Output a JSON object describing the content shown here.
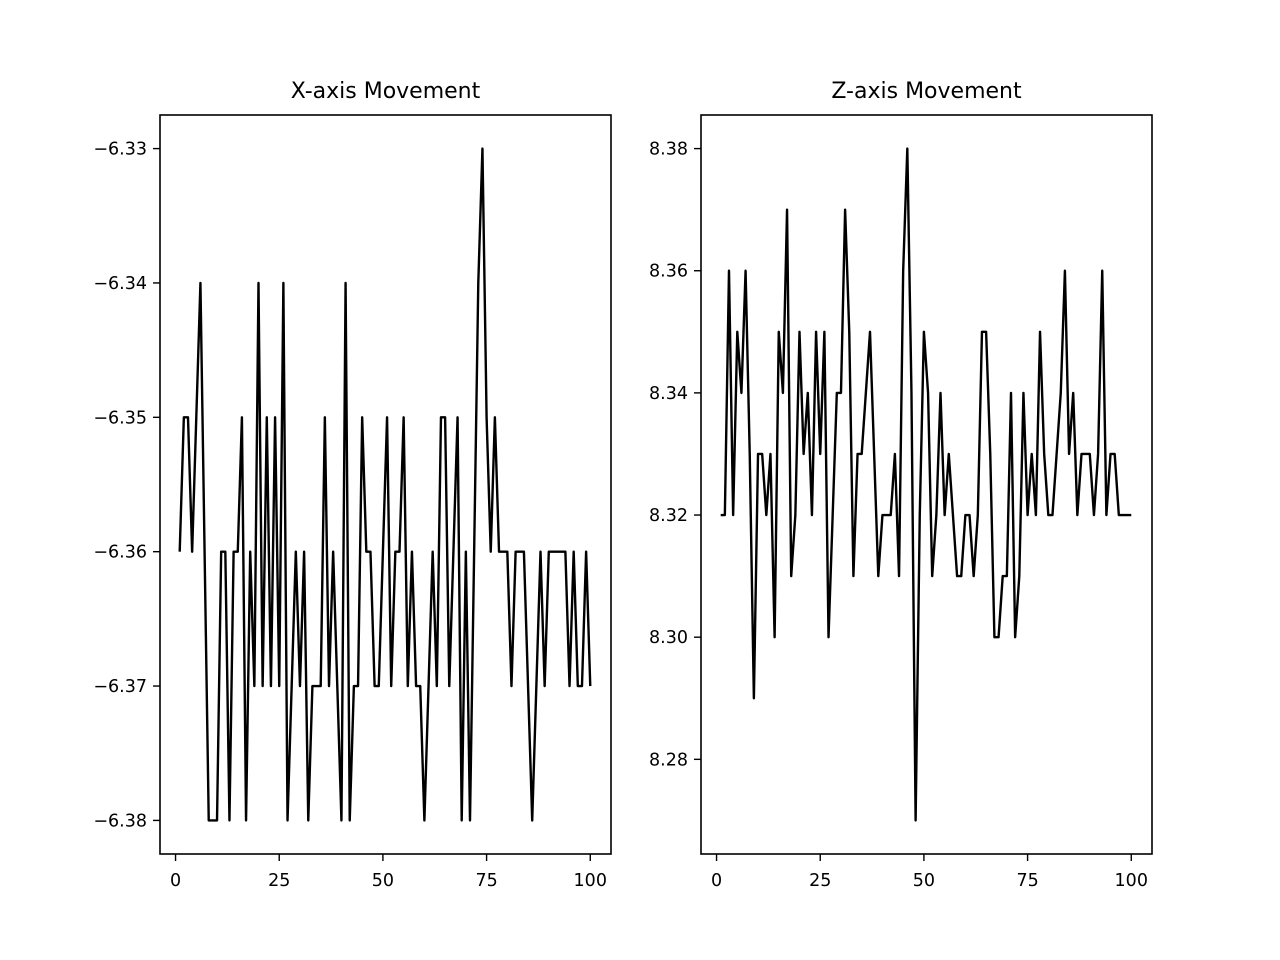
{
  "chart_data": [
    {
      "type": "line",
      "title": "X-axis Movement",
      "xlabel": "",
      "ylabel": "",
      "xlim": [
        -3.75,
        105.0
      ],
      "ylim": [
        -6.3825,
        -6.3275
      ],
      "xticks": [
        0,
        25,
        50,
        75,
        100
      ],
      "xtick_labels": [
        "0",
        "25",
        "50",
        "75",
        "100"
      ],
      "yticks": [
        -6.38,
        -6.37,
        -6.36,
        -6.35,
        -6.34,
        -6.33
      ],
      "ytick_labels": [
        "−6.38",
        "−6.37",
        "−6.36",
        "−6.35",
        "−6.34",
        "−6.33"
      ],
      "grid": false,
      "color": "#000000",
      "series": [
        {
          "x": [
            1,
            2,
            3,
            4,
            5,
            6,
            7,
            8,
            9,
            10,
            11,
            12,
            13,
            14,
            15,
            16,
            17,
            18,
            19,
            20,
            21,
            22,
            23,
            24,
            25,
            26,
            27,
            28,
            29,
            30,
            31,
            32,
            33,
            34,
            35,
            36,
            37,
            38,
            39,
            40,
            41,
            42,
            43,
            44,
            45,
            46,
            47,
            48,
            49,
            50,
            51,
            52,
            53,
            54,
            55,
            56,
            57,
            58,
            59,
            60,
            61,
            62,
            63,
            64,
            65,
            66,
            67,
            68,
            69,
            70,
            71,
            72,
            73,
            74,
            75,
            76,
            77,
            78,
            79,
            80,
            81,
            82,
            83,
            84,
            85,
            86,
            87,
            88,
            89,
            90,
            91,
            92,
            93,
            94,
            95,
            96,
            97,
            98,
            99,
            100
          ],
          "y": [
            -6.36,
            -6.35,
            -6.35,
            -6.36,
            -6.35,
            -6.34,
            -6.36,
            -6.38,
            -6.38,
            -6.38,
            -6.36,
            -6.36,
            -6.38,
            -6.36,
            -6.36,
            -6.35,
            -6.38,
            -6.36,
            -6.37,
            -6.34,
            -6.37,
            -6.35,
            -6.37,
            -6.35,
            -6.37,
            -6.34,
            -6.38,
            -6.37,
            -6.36,
            -6.37,
            -6.36,
            -6.38,
            -6.37,
            -6.37,
            -6.37,
            -6.35,
            -6.37,
            -6.36,
            -6.37,
            -6.38,
            -6.34,
            -6.38,
            -6.37,
            -6.37,
            -6.35,
            -6.36,
            -6.36,
            -6.37,
            -6.37,
            -6.36,
            -6.35,
            -6.37,
            -6.36,
            -6.36,
            -6.35,
            -6.37,
            -6.36,
            -6.37,
            -6.37,
            -6.38,
            -6.37,
            -6.36,
            -6.37,
            -6.35,
            -6.35,
            -6.37,
            -6.36,
            -6.35,
            -6.38,
            -6.36,
            -6.38,
            -6.36,
            -6.34,
            -6.33,
            -6.35,
            -6.36,
            -6.35,
            -6.36,
            -6.36,
            -6.36,
            -6.37,
            -6.36,
            -6.36,
            -6.36,
            -6.37,
            -6.38,
            -6.37,
            -6.36,
            -6.37,
            -6.36,
            -6.36,
            -6.36,
            -6.36,
            -6.36,
            -6.37,
            -6.36,
            -6.37,
            -6.37,
            -6.36,
            -6.37
          ]
        }
      ]
    },
    {
      "type": "line",
      "title": "Z-axis Movement",
      "xlabel": "",
      "ylabel": "",
      "xlim": [
        -3.75,
        105.0
      ],
      "ylim": [
        8.2645,
        8.3855
      ],
      "xticks": [
        0,
        25,
        50,
        75,
        100
      ],
      "xtick_labels": [
        "0",
        "25",
        "50",
        "75",
        "100"
      ],
      "yticks": [
        8.28,
        8.3,
        8.32,
        8.34,
        8.36,
        8.38
      ],
      "ytick_labels": [
        "8.28",
        "8.30",
        "8.32",
        "8.34",
        "8.36",
        "8.38"
      ],
      "grid": false,
      "color": "#000000",
      "series": [
        {
          "x": [
            1,
            2,
            3,
            4,
            5,
            6,
            7,
            8,
            9,
            10,
            11,
            12,
            13,
            14,
            15,
            16,
            17,
            18,
            19,
            20,
            21,
            22,
            23,
            24,
            25,
            26,
            27,
            28,
            29,
            30,
            31,
            32,
            33,
            34,
            35,
            36,
            37,
            38,
            39,
            40,
            41,
            42,
            43,
            44,
            45,
            46,
            47,
            48,
            49,
            50,
            51,
            52,
            53,
            54,
            55,
            56,
            57,
            58,
            59,
            60,
            61,
            62,
            63,
            64,
            65,
            66,
            67,
            68,
            69,
            70,
            71,
            72,
            73,
            74,
            75,
            76,
            77,
            78,
            79,
            80,
            81,
            82,
            83,
            84,
            85,
            86,
            87,
            88,
            89,
            90,
            91,
            92,
            93,
            94,
            95,
            96,
            97,
            98,
            99,
            100
          ],
          "y": [
            8.32,
            8.32,
            8.36,
            8.32,
            8.35,
            8.34,
            8.36,
            8.33,
            8.29,
            8.33,
            8.33,
            8.32,
            8.33,
            8.3,
            8.35,
            8.34,
            8.37,
            8.31,
            8.32,
            8.35,
            8.33,
            8.34,
            8.32,
            8.35,
            8.33,
            8.35,
            8.3,
            8.32,
            8.34,
            8.34,
            8.37,
            8.35,
            8.31,
            8.33,
            8.33,
            8.34,
            8.35,
            8.33,
            8.31,
            8.32,
            8.32,
            8.32,
            8.33,
            8.31,
            8.36,
            8.38,
            8.34,
            8.27,
            8.32,
            8.35,
            8.34,
            8.31,
            8.32,
            8.34,
            8.32,
            8.33,
            8.32,
            8.31,
            8.31,
            8.32,
            8.32,
            8.31,
            8.32,
            8.35,
            8.35,
            8.33,
            8.3,
            8.3,
            8.31,
            8.31,
            8.34,
            8.3,
            8.31,
            8.34,
            8.32,
            8.33,
            8.32,
            8.35,
            8.33,
            8.32,
            8.32,
            8.33,
            8.34,
            8.36,
            8.33,
            8.34,
            8.32,
            8.33,
            8.33,
            8.33,
            8.32,
            8.33,
            8.36,
            8.32,
            8.33,
            8.33,
            8.32,
            8.32,
            8.32,
            8.32
          ]
        }
      ]
    }
  ]
}
